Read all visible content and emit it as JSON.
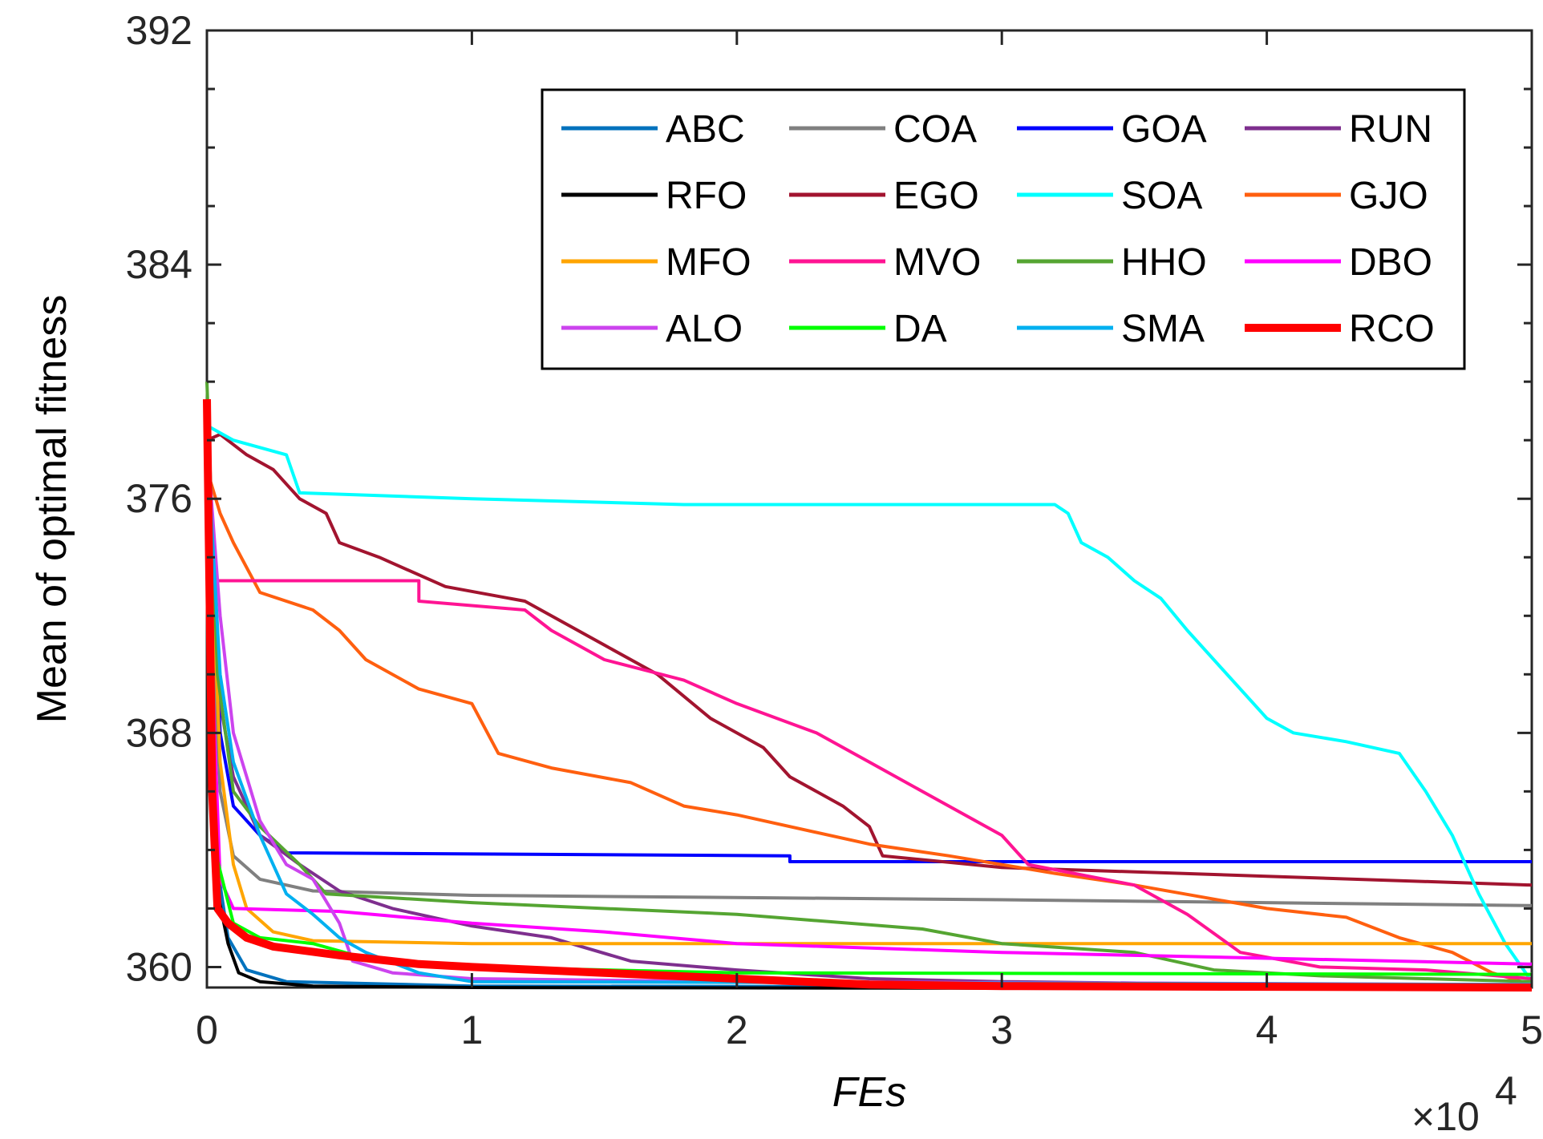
{
  "chart_data": {
    "type": "line",
    "title": "",
    "xlabel": "FEs",
    "ylabel": "Mean of optimal fitness",
    "x_multiplier_label": "×10",
    "x_multiplier_exp": "4",
    "xlim": [
      0,
      5
    ],
    "ylim": [
      359.3,
      392
    ],
    "xticks": [
      "0",
      "1",
      "2",
      "3",
      "4",
      "5"
    ],
    "yticks": [
      "360",
      "368",
      "376",
      "384",
      "392"
    ],
    "ytick_values": [
      360,
      368,
      376,
      384,
      392
    ],
    "grid": false,
    "legend_position": "top-right",
    "series": [
      {
        "name": "ABC",
        "color": "#0072BD",
        "width": 4,
        "points": [
          [
            0,
            378
          ],
          [
            0.03,
            364
          ],
          [
            0.08,
            361
          ],
          [
            0.15,
            359.9
          ],
          [
            0.3,
            359.5
          ],
          [
            1,
            359.35
          ],
          [
            5,
            359.3
          ]
        ]
      },
      {
        "name": "COA",
        "color": "#808080",
        "width": 4,
        "points": [
          [
            0,
            376
          ],
          [
            0.05,
            366
          ],
          [
            0.1,
            363.8
          ],
          [
            0.2,
            363.0
          ],
          [
            0.4,
            362.6
          ],
          [
            1,
            362.45
          ],
          [
            3,
            362.3
          ],
          [
            5,
            362.1
          ]
        ]
      },
      {
        "name": "GOA",
        "color": "#0000FF",
        "width": 4,
        "points": [
          [
            0,
            378
          ],
          [
            0.05,
            368
          ],
          [
            0.1,
            365.5
          ],
          [
            0.2,
            364.5
          ],
          [
            0.3,
            363.9
          ],
          [
            2.2,
            363.8
          ],
          [
            2.2,
            363.6
          ],
          [
            5,
            363.6
          ]
        ]
      },
      {
        "name": "RUN",
        "color": "#7E2F8E",
        "width": 4,
        "points": [
          [
            0,
            378
          ],
          [
            0.05,
            369
          ],
          [
            0.1,
            366.5
          ],
          [
            0.2,
            364.5
          ],
          [
            0.35,
            363.5
          ],
          [
            0.5,
            362.6
          ],
          [
            0.7,
            362.0
          ],
          [
            1.0,
            361.4
          ],
          [
            1.3,
            361.0
          ],
          [
            1.6,
            360.2
          ],
          [
            2.0,
            359.9
          ],
          [
            2.5,
            359.6
          ],
          [
            3,
            359.5
          ],
          [
            4,
            359.4
          ],
          [
            5,
            359.3
          ]
        ]
      },
      {
        "name": "RFO",
        "color": "#000000",
        "width": 4,
        "points": [
          [
            0,
            378
          ],
          [
            0.03,
            363
          ],
          [
            0.08,
            360.8
          ],
          [
            0.12,
            359.8
          ],
          [
            0.2,
            359.5
          ],
          [
            0.4,
            359.35
          ],
          [
            1,
            359.3
          ],
          [
            5,
            359.25
          ]
        ]
      },
      {
        "name": "EGO",
        "color": "#A2142F",
        "width": 4,
        "points": [
          [
            0,
            378
          ],
          [
            0.05,
            378.2
          ],
          [
            0.15,
            377.5
          ],
          [
            0.25,
            377
          ],
          [
            0.35,
            376
          ],
          [
            0.45,
            375.5
          ],
          [
            0.5,
            374.5
          ],
          [
            0.65,
            374.0
          ],
          [
            0.7,
            373.8
          ],
          [
            0.9,
            373.0
          ],
          [
            1.2,
            372.5
          ],
          [
            1.5,
            371.0
          ],
          [
            1.7,
            370.0
          ],
          [
            1.9,
            368.5
          ],
          [
            2.1,
            367.5
          ],
          [
            2.2,
            366.5
          ],
          [
            2.4,
            365.5
          ],
          [
            2.5,
            364.8
          ],
          [
            2.55,
            363.8
          ],
          [
            3,
            363.4
          ],
          [
            4,
            363.1
          ],
          [
            5,
            362.8
          ]
        ]
      },
      {
        "name": "SOA",
        "color": "#00FFFF",
        "width": 4,
        "points": [
          [
            0,
            378.5
          ],
          [
            0.1,
            378
          ],
          [
            0.3,
            377.5
          ],
          [
            0.35,
            376.2
          ],
          [
            1,
            376.0
          ],
          [
            1.8,
            375.8
          ],
          [
            3.2,
            375.8
          ],
          [
            3.25,
            375.5
          ],
          [
            3.3,
            374.5
          ],
          [
            3.4,
            374.0
          ],
          [
            3.5,
            373.2
          ],
          [
            3.6,
            372.6
          ],
          [
            3.7,
            371.5
          ],
          [
            3.8,
            370.5
          ],
          [
            3.9,
            369.5
          ],
          [
            4.0,
            368.5
          ],
          [
            4.1,
            368.0
          ],
          [
            4.3,
            367.7
          ],
          [
            4.5,
            367.3
          ],
          [
            4.6,
            366.0
          ],
          [
            4.7,
            364.5
          ],
          [
            4.8,
            362.5
          ],
          [
            4.9,
            360.8
          ],
          [
            5,
            359.5
          ]
        ]
      },
      {
        "name": "GJO",
        "color": "#FF5F0F",
        "width": 4,
        "points": [
          [
            0,
            377
          ],
          [
            0.05,
            375.5
          ],
          [
            0.1,
            374.5
          ],
          [
            0.2,
            372.8
          ],
          [
            0.4,
            372.2
          ],
          [
            0.5,
            371.5
          ],
          [
            0.6,
            370.5
          ],
          [
            0.8,
            369.5
          ],
          [
            1.0,
            369.0
          ],
          [
            1.1,
            367.3
          ],
          [
            1.3,
            366.8
          ],
          [
            1.6,
            366.3
          ],
          [
            1.8,
            365.5
          ],
          [
            2.0,
            365.2
          ],
          [
            2.5,
            364.2
          ],
          [
            2.8,
            363.8
          ],
          [
            3.2,
            363.2
          ],
          [
            3.5,
            362.8
          ],
          [
            4.0,
            362.0
          ],
          [
            4.3,
            361.7
          ],
          [
            4.5,
            361.0
          ],
          [
            4.7,
            360.5
          ],
          [
            4.85,
            359.8
          ],
          [
            5,
            359.4
          ]
        ]
      },
      {
        "name": "MFO",
        "color": "#FFA500",
        "width": 4,
        "points": [
          [
            0,
            378
          ],
          [
            0.05,
            367
          ],
          [
            0.1,
            363.5
          ],
          [
            0.15,
            362.0
          ],
          [
            0.25,
            361.2
          ],
          [
            0.4,
            360.9
          ],
          [
            1,
            360.8
          ],
          [
            5,
            360.8
          ]
        ]
      },
      {
        "name": "MVO",
        "color": "#FF1493",
        "width": 4,
        "points": [
          [
            0,
            373.2
          ],
          [
            0.8,
            373.2
          ],
          [
            0.8,
            372.5
          ],
          [
            1.2,
            372.2
          ],
          [
            1.3,
            371.5
          ],
          [
            1.5,
            370.5
          ],
          [
            1.8,
            369.8
          ],
          [
            2.0,
            369.0
          ],
          [
            2.3,
            368.0
          ],
          [
            2.5,
            367.0
          ],
          [
            2.7,
            366.0
          ],
          [
            3.0,
            364.5
          ],
          [
            3.1,
            363.5
          ],
          [
            3.5,
            362.8
          ],
          [
            3.7,
            361.8
          ],
          [
            3.9,
            360.5
          ],
          [
            4.2,
            360.0
          ],
          [
            4.6,
            359.9
          ],
          [
            5,
            359.6
          ]
        ]
      },
      {
        "name": "HHO",
        "color": "#55A532",
        "width": 4,
        "points": [
          [
            0,
            380
          ],
          [
            0.04,
            370
          ],
          [
            0.1,
            366
          ],
          [
            0.2,
            364.8
          ],
          [
            0.35,
            363.5
          ],
          [
            0.45,
            362.5
          ],
          [
            1,
            362.2
          ],
          [
            2,
            361.8
          ],
          [
            2.7,
            361.3
          ],
          [
            3,
            360.8
          ],
          [
            3.5,
            360.5
          ],
          [
            3.8,
            359.9
          ],
          [
            4.2,
            359.7
          ],
          [
            5,
            359.5
          ]
        ]
      },
      {
        "name": "DBO",
        "color": "#FF00FF",
        "width": 4,
        "points": [
          [
            0,
            375
          ],
          [
            0.05,
            363
          ],
          [
            0.1,
            362.0
          ],
          [
            0.5,
            361.9
          ],
          [
            1,
            361.5
          ],
          [
            1.5,
            361.2
          ],
          [
            2,
            360.8
          ],
          [
            3,
            360.5
          ],
          [
            4,
            360.3
          ],
          [
            4.5,
            360.2
          ],
          [
            5,
            360.1
          ]
        ]
      },
      {
        "name": "ALO",
        "color": "#CC44EE",
        "width": 4,
        "points": [
          [
            0,
            378
          ],
          [
            0.05,
            372
          ],
          [
            0.1,
            368
          ],
          [
            0.15,
            366.5
          ],
          [
            0.2,
            365
          ],
          [
            0.3,
            363.5
          ],
          [
            0.4,
            363.0
          ],
          [
            0.5,
            361.5
          ],
          [
            0.55,
            360.2
          ],
          [
            0.7,
            359.8
          ],
          [
            1,
            359.6
          ],
          [
            2,
            359.5
          ],
          [
            5,
            359.4
          ]
        ]
      },
      {
        "name": "DA",
        "color": "#00FF00",
        "width": 4,
        "points": [
          [
            0,
            378
          ],
          [
            0.03,
            364
          ],
          [
            0.1,
            361.5
          ],
          [
            0.2,
            361.0
          ],
          [
            0.4,
            360.8
          ],
          [
            0.6,
            360.3
          ],
          [
            1,
            360.0
          ],
          [
            2,
            359.8
          ],
          [
            5,
            359.75
          ]
        ]
      },
      {
        "name": "SMA",
        "color": "#00B0F0",
        "width": 4,
        "points": [
          [
            0,
            378
          ],
          [
            0.05,
            370
          ],
          [
            0.1,
            367
          ],
          [
            0.2,
            364.5
          ],
          [
            0.3,
            362.5
          ],
          [
            0.4,
            361.8
          ],
          [
            0.5,
            361.0
          ],
          [
            0.6,
            360.5
          ],
          [
            0.8,
            359.8
          ],
          [
            1,
            359.5
          ],
          [
            5,
            359.4
          ]
        ]
      },
      {
        "name": "RCO",
        "color": "#FF0000",
        "width": 10,
        "points": [
          [
            0,
            379.4
          ],
          [
            0.02,
            366
          ],
          [
            0.04,
            362
          ],
          [
            0.08,
            361.5
          ],
          [
            0.15,
            361.0
          ],
          [
            0.25,
            360.7
          ],
          [
            0.5,
            360.4
          ],
          [
            0.8,
            360.1
          ],
          [
            1,
            360.0
          ],
          [
            1.5,
            359.8
          ],
          [
            2.0,
            359.6
          ],
          [
            2.5,
            359.4
          ],
          [
            3,
            359.35
          ],
          [
            5,
            359.3
          ]
        ]
      }
    ]
  }
}
